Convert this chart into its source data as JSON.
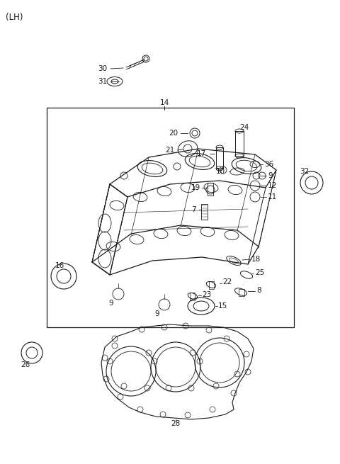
{
  "title": "(LH)",
  "background_color": "#ffffff",
  "line_color": "#1a1a1a",
  "text_color": "#1a1a1a",
  "fig_width": 4.8,
  "fig_height": 6.55,
  "dpi": 100
}
